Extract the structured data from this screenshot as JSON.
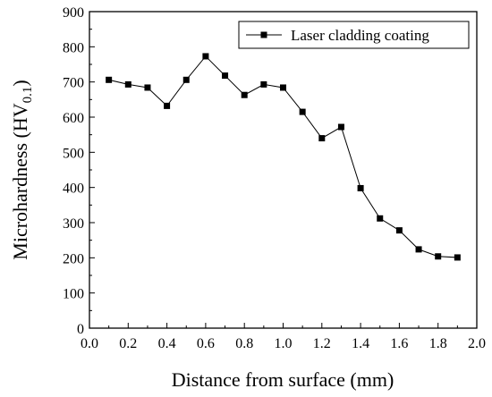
{
  "chart_data": {
    "type": "line",
    "title": "",
    "xlabel": "Distance from surface (mm)",
    "ylabel": {
      "main": "Microhardness (HV",
      "subscript": "0.1",
      "close": ")"
    },
    "xlim": [
      0.0,
      2.0
    ],
    "ylim": [
      0,
      900
    ],
    "xticks": [
      "0.0",
      "0.2",
      "0.4",
      "0.6",
      "0.8",
      "1.0",
      "1.2",
      "1.4",
      "1.6",
      "1.8",
      "2.0"
    ],
    "yticks": [
      "0",
      "100",
      "200",
      "300",
      "400",
      "500",
      "600",
      "700",
      "800",
      "900"
    ],
    "grid": false,
    "legend_position": "top-right",
    "series": [
      {
        "name": "Laser cladding coating",
        "marker": "square",
        "color": "#000000",
        "x": [
          0.1,
          0.2,
          0.3,
          0.4,
          0.5,
          0.6,
          0.7,
          0.8,
          0.9,
          1.0,
          1.1,
          1.2,
          1.3,
          1.4,
          1.5,
          1.6,
          1.7,
          1.8,
          1.9
        ],
        "y": [
          706,
          693,
          684,
          632,
          706,
          773,
          718,
          663,
          693,
          684,
          615,
          540,
          572,
          398,
          312,
          278,
          224,
          204,
          201
        ]
      }
    ]
  }
}
